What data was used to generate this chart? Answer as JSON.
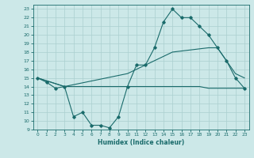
{
  "xlabel": "Humidex (Indice chaleur)",
  "xlim": [
    -0.5,
    23.5
  ],
  "ylim": [
    9,
    23.5
  ],
  "yticks": [
    9,
    10,
    11,
    12,
    13,
    14,
    15,
    16,
    17,
    18,
    19,
    20,
    21,
    22,
    23
  ],
  "xticks": [
    0,
    1,
    2,
    3,
    4,
    5,
    6,
    7,
    8,
    9,
    10,
    11,
    12,
    13,
    14,
    15,
    16,
    17,
    18,
    19,
    20,
    21,
    22,
    23
  ],
  "bg_color": "#cce8e8",
  "line_color": "#1a6b6b",
  "grid_color": "#aacfcf",
  "line1_x": [
    0,
    1,
    2,
    3,
    4,
    5,
    6,
    7,
    8,
    9,
    10,
    11,
    12,
    13,
    14,
    15,
    16,
    17,
    18,
    19,
    20,
    21,
    22,
    23
  ],
  "line1_y": [
    15,
    14.5,
    13.8,
    14,
    10.5,
    11,
    9.5,
    9.5,
    9.2,
    10.5,
    14,
    16.5,
    16.5,
    18.5,
    21.5,
    23,
    22,
    22,
    21,
    20,
    18.5,
    17,
    15,
    13.8
  ],
  "line2_x": [
    0,
    3,
    10,
    14,
    15,
    16,
    17,
    18,
    19,
    20,
    21,
    22,
    23
  ],
  "line2_y": [
    15,
    14,
    14,
    14,
    14,
    14,
    14,
    14,
    13.8,
    13.8,
    13.8,
    13.8,
    13.8
  ],
  "line3_x": [
    0,
    3,
    10,
    14,
    15,
    19,
    20,
    21,
    22,
    23
  ],
  "line3_y": [
    15,
    14,
    15.5,
    17.5,
    18,
    18.5,
    18.5,
    17,
    15.5,
    15.0
  ]
}
